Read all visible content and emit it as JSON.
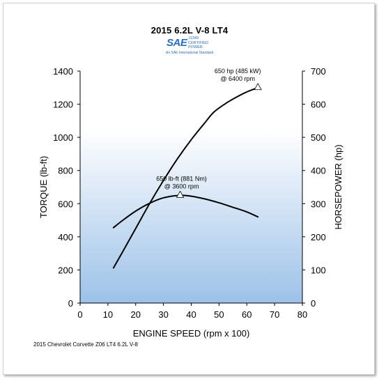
{
  "header": {
    "title": "2015 6.2L V-8 LT4",
    "logo_text": "SAE",
    "logo_cert_lines": [
      "J1349",
      "CERTIFIED",
      "POWER"
    ],
    "logo_sub": "An SAE International Standard"
  },
  "footer": {
    "caption": "2015 Chevrolet Corvette Z06 LT4 6.2L V-8"
  },
  "chart_data": {
    "type": "line",
    "title": "2015 6.2L V-8 LT4",
    "xlabel": "ENGINE SPEED (rpm x 100)",
    "ylabel": "TORQUE (lb-ft)",
    "y2label": "HORSEPOWER (hp)",
    "xlim": [
      0,
      80
    ],
    "ylim": [
      0,
      1400
    ],
    "y2lim": [
      0,
      700
    ],
    "x_ticks": [
      0,
      10,
      20,
      30,
      40,
      50,
      60,
      70,
      80
    ],
    "y_ticks": [
      0,
      200,
      400,
      600,
      800,
      1000,
      1200,
      1400
    ],
    "y2_ticks": [
      0,
      100,
      200,
      300,
      400,
      500,
      600,
      700
    ],
    "grid": false,
    "background": "gradient-blue-bottom",
    "colors": {
      "line": "#000000",
      "plot_top": "#ffffff",
      "plot_bottom": "#9cc2e8"
    },
    "series": [
      {
        "name": "TORQUE",
        "axis": "left",
        "x": [
          12,
          15,
          20,
          25,
          30,
          36,
          40,
          45,
          50,
          55,
          60,
          64
        ],
        "y": [
          455,
          495,
          555,
          602,
          635,
          650,
          645,
          628,
          605,
          578,
          550,
          520
        ]
      },
      {
        "name": "HORSEPOWER",
        "axis": "right",
        "x": [
          12,
          15,
          20,
          25,
          30,
          35,
          40,
          45,
          48,
          52,
          56,
          60,
          64
        ],
        "y": [
          106,
          150,
          225,
          300,
          370,
          435,
          493,
          545,
          575,
          600,
          620,
          637,
          650
        ]
      }
    ],
    "annotations": [
      {
        "series": "TORQUE",
        "x": 36,
        "y": 650,
        "line1": "650 lb-ft (881 Nm)",
        "line2": "@ 3600 rpm"
      },
      {
        "series": "HORSEPOWER",
        "x": 64,
        "y": 650,
        "line1": "650 hp (485 kW)",
        "line2": "@ 6400 rpm"
      }
    ]
  }
}
